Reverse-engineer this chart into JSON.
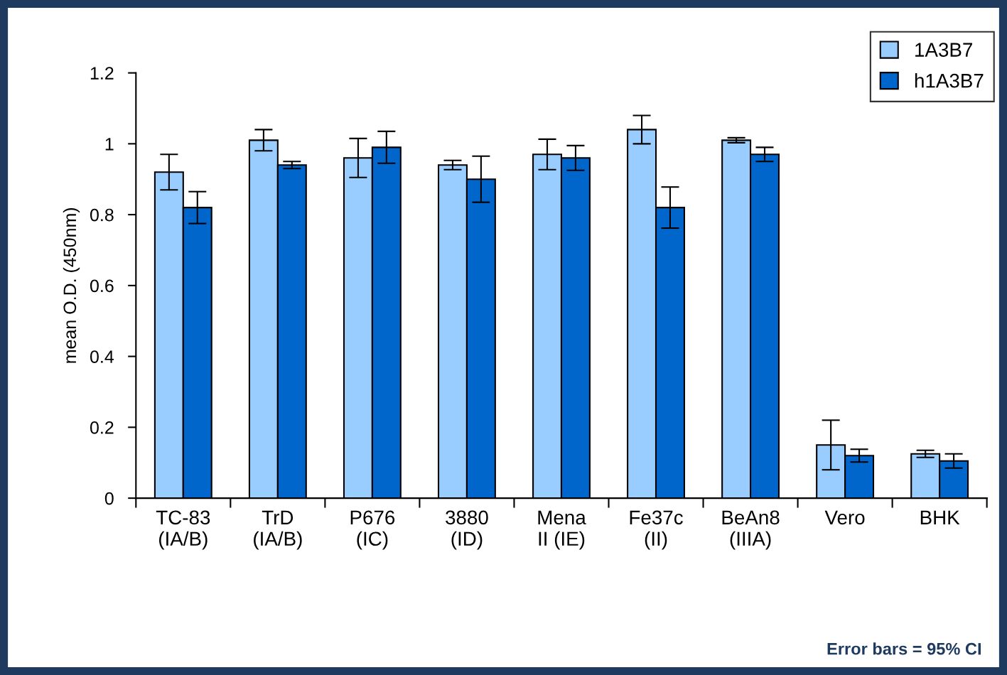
{
  "chart_data": {
    "type": "bar",
    "ylabel": "mean O.D. (450nm)",
    "categories": [
      "TC-83\n(IA/B)",
      "TrD\n(IA/B)",
      "P676\n(IC)",
      "3880\n(ID)",
      "Mena\nII (IE)",
      "Fe37c\n(II)",
      "BeAn8\n(IIIA)",
      "Vero",
      "BHK"
    ],
    "series": [
      {
        "name": "1A3B7",
        "color": "#99ccff",
        "values": [
          0.92,
          1.01,
          0.96,
          0.94,
          0.97,
          1.04,
          1.01,
          0.15,
          0.125
        ],
        "errors": [
          0.05,
          0.03,
          0.055,
          0.013,
          0.043,
          0.04,
          0.007,
          0.07,
          0.01
        ]
      },
      {
        "name": "h1A3B7",
        "color": "#0066cc",
        "values": [
          0.82,
          0.94,
          0.99,
          0.9,
          0.96,
          0.82,
          0.97,
          0.12,
          0.105
        ],
        "errors": [
          0.045,
          0.01,
          0.045,
          0.065,
          0.035,
          0.058,
          0.02,
          0.018,
          0.02
        ]
      }
    ],
    "ylim": [
      0,
      1.2
    ],
    "yticks": [
      0,
      {
        "value": 0.2,
        "label": "0.2"
      },
      {
        "value": 0.4,
        "label": "0.4"
      },
      {
        "value": 0.6,
        "label": "0.6"
      },
      {
        "value": 0.8,
        "label": "0.8"
      },
      1,
      {
        "value": 1.2,
        "label": "1.2"
      }
    ],
    "grid": false,
    "legend": "top right",
    "annotations": [
      "Error bars = 95% CI"
    ]
  }
}
